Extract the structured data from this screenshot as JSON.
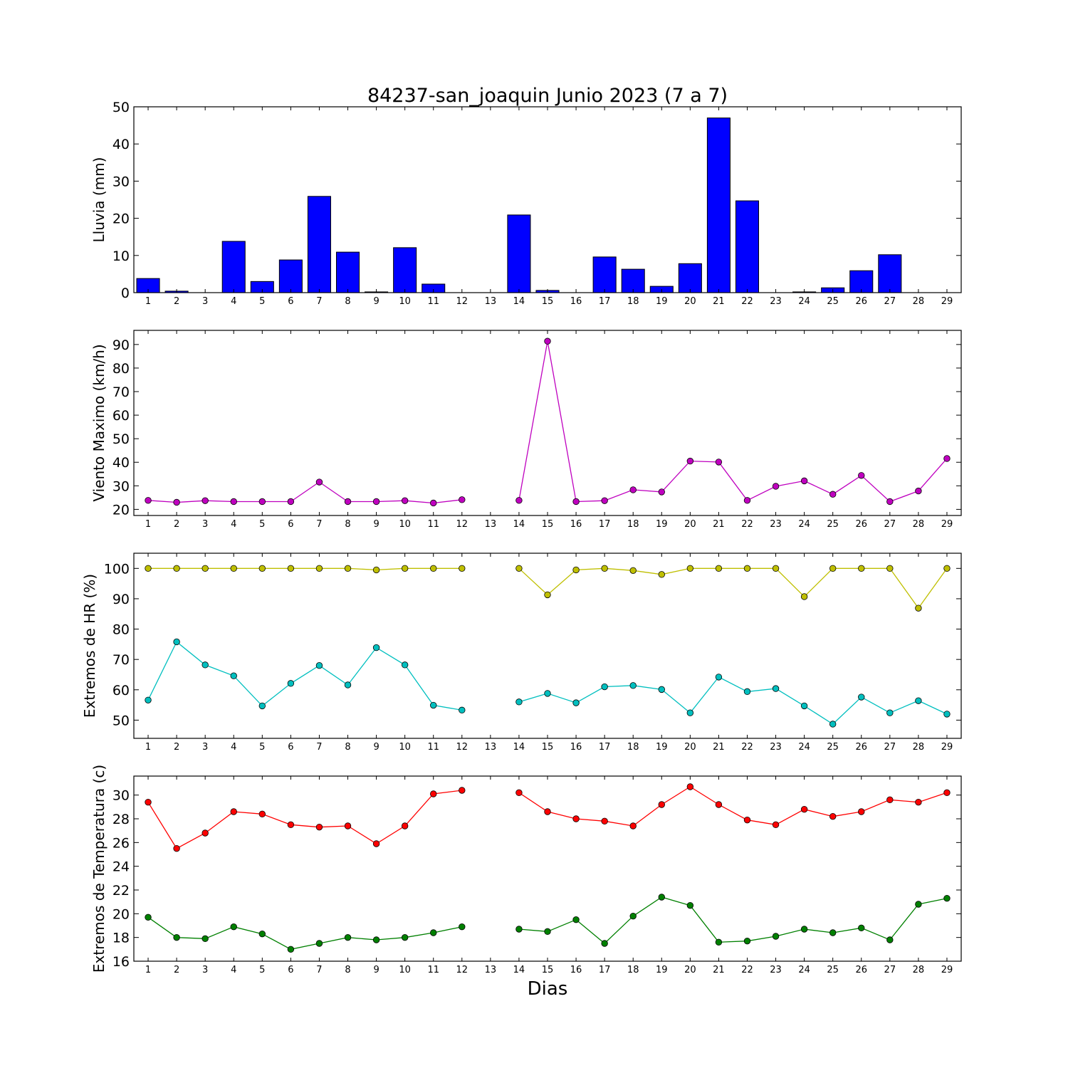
{
  "title": "84237-san_joaquin Junio 2023  (7 a 7)",
  "xlabel": "Dias",
  "chart_data": [
    {
      "type": "bar",
      "ylabel": "Lluvia (mm)",
      "ylim": [
        0,
        50
      ],
      "yticks": [
        0,
        10,
        20,
        30,
        40,
        50
      ],
      "x": [
        1,
        2,
        3,
        4,
        5,
        6,
        7,
        8,
        9,
        10,
        11,
        12,
        13,
        14,
        15,
        16,
        17,
        18,
        19,
        20,
        21,
        22,
        23,
        24,
        25,
        26,
        27,
        28,
        29
      ],
      "values": [
        3.8,
        0.4,
        0,
        13.8,
        3.0,
        8.8,
        25.9,
        10.9,
        0.2,
        12.1,
        2.3,
        0,
        0,
        20.9,
        0.6,
        0,
        9.6,
        6.3,
        1.7,
        7.8,
        47.0,
        24.7,
        0,
        0.2,
        1.3,
        5.9,
        10.2,
        0,
        0
      ],
      "series_colors": [
        "#0000ff"
      ]
    },
    {
      "type": "line",
      "ylabel": "Viento Maximo (km/h)",
      "ylim": [
        17.4,
        96
      ],
      "yticks": [
        20,
        30,
        40,
        50,
        60,
        70,
        80,
        90
      ],
      "x": [
        1,
        2,
        3,
        4,
        5,
        6,
        7,
        8,
        9,
        10,
        11,
        12,
        13,
        14,
        15,
        16,
        17,
        18,
        19,
        20,
        21,
        22,
        23,
        24,
        25,
        26,
        27,
        28,
        29
      ],
      "series": [
        {
          "color": "#bf00bf",
          "values": [
            23.8,
            23.0,
            23.7,
            23.3,
            23.3,
            23.3,
            31.6,
            23.3,
            23.3,
            23.7,
            22.7,
            24.1,
            null,
            23.8,
            91.4,
            23.3,
            23.7,
            28.3,
            27.4,
            40.5,
            40.1,
            23.8,
            29.8,
            32.1,
            26.4,
            34.4,
            23.3,
            27.8,
            41.6
          ]
        }
      ]
    },
    {
      "type": "line",
      "ylabel": "Extremos de HR (%)",
      "ylim": [
        44,
        105
      ],
      "yticks": [
        50,
        60,
        70,
        80,
        90,
        100
      ],
      "x": [
        1,
        2,
        3,
        4,
        5,
        6,
        7,
        8,
        9,
        10,
        11,
        12,
        13,
        14,
        15,
        16,
        17,
        18,
        19,
        20,
        21,
        22,
        23,
        24,
        25,
        26,
        27,
        28,
        29
      ],
      "series": [
        {
          "color": "#bfbf00",
          "values": [
            100,
            100,
            100,
            100,
            100,
            100,
            100,
            100,
            99.5,
            100,
            100,
            100,
            null,
            100,
            91.3,
            99.5,
            100,
            99.3,
            98.0,
            100,
            100,
            100,
            100,
            90.7,
            100,
            100,
            100,
            86.9,
            100
          ]
        },
        {
          "color": "#00bfbf",
          "values": [
            56.6,
            75.8,
            68.2,
            64.6,
            54.7,
            62.1,
            68.0,
            61.6,
            73.9,
            68.2,
            54.9,
            53.3,
            null,
            56.0,
            58.8,
            55.7,
            61.0,
            61.4,
            60.1,
            52.4,
            64.2,
            59.4,
            60.4,
            54.7,
            48.7,
            57.6,
            52.4,
            56.4,
            52.0
          ]
        }
      ]
    },
    {
      "type": "line",
      "ylabel": "Extremos de Temperatura (c)",
      "ylim": [
        16,
        31.6
      ],
      "yticks": [
        16,
        18,
        20,
        22,
        24,
        26,
        28,
        30
      ],
      "x": [
        1,
        2,
        3,
        4,
        5,
        6,
        7,
        8,
        9,
        10,
        11,
        12,
        13,
        14,
        15,
        16,
        17,
        18,
        19,
        20,
        21,
        22,
        23,
        24,
        25,
        26,
        27,
        28,
        29
      ],
      "series": [
        {
          "color": "#ff0000",
          "values": [
            29.4,
            25.5,
            26.8,
            28.6,
            28.4,
            27.5,
            27.3,
            27.4,
            25.9,
            27.4,
            30.1,
            30.4,
            null,
            30.2,
            28.6,
            28.0,
            27.8,
            27.4,
            29.2,
            30.7,
            29.2,
            27.9,
            27.5,
            28.8,
            28.2,
            28.6,
            29.6,
            29.4,
            30.2
          ]
        },
        {
          "color": "#008000",
          "values": [
            19.7,
            18.0,
            17.9,
            18.9,
            18.3,
            17.0,
            17.5,
            18.0,
            17.8,
            18.0,
            18.4,
            18.9,
            null,
            18.7,
            18.5,
            19.5,
            17.5,
            19.8,
            21.4,
            20.7,
            17.6,
            17.7,
            18.1,
            18.7,
            18.4,
            18.8,
            17.8,
            20.8,
            21.3
          ]
        }
      ]
    }
  ]
}
